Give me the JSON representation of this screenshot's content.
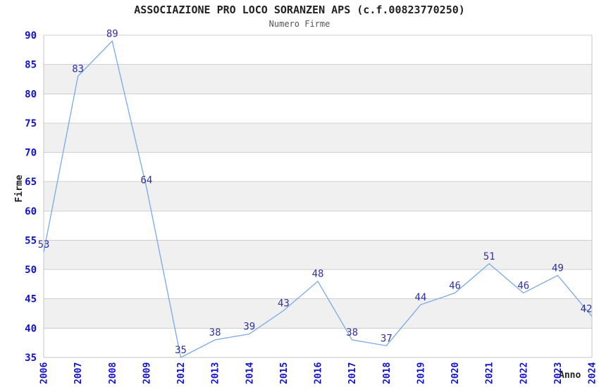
{
  "header": {
    "title": "ASSOCIAZIONE PRO LOCO SORANZEN APS (c.f.00823770250)",
    "subtitle": "Numero Firme"
  },
  "axes": {
    "y_title": "Firme",
    "x_title": "Anno"
  },
  "chart_data": {
    "type": "line",
    "title": "ASSOCIAZIONE PRO LOCO SORANZEN APS (c.f.00823770250)",
    "subtitle": "Numero Firme",
    "xlabel": "Anno",
    "ylabel": "Firme",
    "categories": [
      "2006",
      "2007",
      "2008",
      "2009",
      "2012",
      "2013",
      "2014",
      "2015",
      "2016",
      "2017",
      "2018",
      "2019",
      "2020",
      "2021",
      "2022",
      "2023",
      "2024"
    ],
    "values": [
      53,
      83,
      89,
      64,
      35,
      38,
      39,
      43,
      48,
      38,
      37,
      44,
      46,
      51,
      46,
      49,
      42
    ],
    "ylim": [
      35,
      90
    ],
    "ytick_step": 5,
    "yticks": [
      35,
      40,
      45,
      50,
      55,
      60,
      65,
      70,
      75,
      80,
      85,
      90
    ],
    "grid": true,
    "legend": "none",
    "shaded_bands": [
      [
        40,
        45
      ],
      [
        50,
        55
      ],
      [
        60,
        65
      ],
      [
        70,
        75
      ],
      [
        80,
        85
      ]
    ],
    "notes": "years 2010 and 2011 absent from x axis; x tick labels rotated vertical; value labels printed above each point",
    "colors": {
      "line": "#7aaae6",
      "data_label": "#31319c",
      "tick_label": "#1111cc",
      "grid_line": "#cfcfcf",
      "band_fill": "#f0f0f0",
      "axis_frame": "#c4c4c4",
      "title": "#222222",
      "subtitle": "#555555",
      "axis_title": "#222222",
      "background": "#ffffff"
    }
  }
}
